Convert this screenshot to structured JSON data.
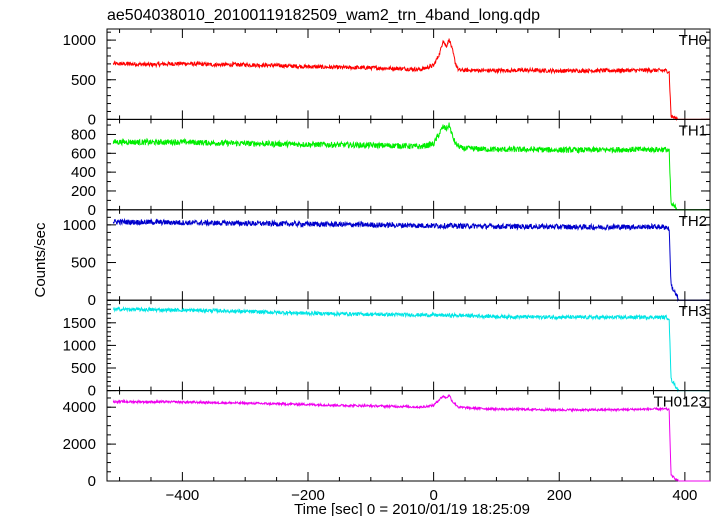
{
  "chart_data": {
    "type": "line",
    "title": "ae504038010_20100119182509_wam2_trn_4band_long.qdp",
    "xlabel": "Time [sec] 0 = 2010/01/19 18:25:09",
    "ylabel": "Counts/sec",
    "xlim": [
      -520,
      440
    ],
    "xticks": [
      -400,
      -200,
      0,
      200,
      400
    ],
    "xtick_labels": [
      "−400",
      "−200",
      "0",
      "200",
      "400"
    ],
    "panels": [
      {
        "name": "TH0",
        "color": "#ff0000",
        "ylim": [
          0,
          1140
        ],
        "yticks": [
          0,
          500,
          1000
        ],
        "yticks_labeled": true,
        "minor_step": 100,
        "x": [
          -510,
          -480,
          -450,
          -420,
          -400,
          -350,
          -300,
          -250,
          -200,
          -150,
          -100,
          -50,
          -20,
          0,
          10,
          15,
          20,
          25,
          30,
          35,
          40,
          60,
          100,
          150,
          200,
          250,
          300,
          350,
          370,
          375,
          378,
          390,
          440
        ],
        "y": [
          700,
          700,
          690,
          700,
          705,
          690,
          690,
          680,
          665,
          655,
          650,
          640,
          630,
          680,
          840,
          1000,
          920,
          1010,
          870,
          700,
          620,
          620,
          615,
          620,
          612,
          615,
          618,
          620,
          615,
          600,
          40,
          0,
          0
        ],
        "noise": 25
      },
      {
        "name": "TH1",
        "color": "#00ee00",
        "ylim": [
          0,
          960
        ],
        "yticks": [
          0,
          200,
          400,
          600,
          800
        ],
        "yticks_labeled": true,
        "minor_step": 100,
        "x": [
          -510,
          -480,
          -450,
          -420,
          -400,
          -350,
          -300,
          -250,
          -200,
          -150,
          -100,
          -50,
          -20,
          0,
          10,
          15,
          20,
          25,
          30,
          35,
          45,
          60,
          100,
          150,
          200,
          250,
          300,
          350,
          370,
          375,
          378,
          390,
          440
        ],
        "y": [
          720,
          720,
          715,
          720,
          720,
          710,
          705,
          700,
          695,
          690,
          685,
          680,
          670,
          700,
          820,
          880,
          860,
          900,
          780,
          700,
          650,
          650,
          640,
          640,
          635,
          635,
          640,
          640,
          640,
          620,
          60,
          0,
          0
        ],
        "noise": 30
      },
      {
        "name": "TH2",
        "color": "#0000cc",
        "ylim": [
          0,
          1200
        ],
        "yticks": [
          0,
          500,
          1000
        ],
        "yticks_labeled": true,
        "minor_step": 100,
        "x": [
          -510,
          -450,
          -400,
          -350,
          -300,
          -250,
          -200,
          -150,
          -100,
          -50,
          0,
          50,
          100,
          150,
          200,
          250,
          300,
          350,
          370,
          375,
          378,
          390,
          440
        ],
        "y": [
          1040,
          1035,
          1030,
          1025,
          1020,
          1015,
          1010,
          1005,
          1000,
          995,
          990,
          985,
          980,
          978,
          975,
          970,
          972,
          975,
          970,
          950,
          200,
          0,
          0
        ],
        "noise": 35
      },
      {
        "name": "TH3",
        "color": "#00e5e5",
        "ylim": [
          0,
          2000
        ],
        "yticks": [
          0,
          500,
          1000,
          1500
        ],
        "yticks_labeled": true,
        "minor_step": 100,
        "x": [
          -510,
          -450,
          -400,
          -350,
          -300,
          -250,
          -200,
          -150,
          -100,
          -50,
          0,
          50,
          100,
          150,
          200,
          250,
          300,
          350,
          370,
          375,
          378,
          390,
          440
        ],
        "y": [
          1800,
          1790,
          1780,
          1770,
          1750,
          1730,
          1710,
          1700,
          1690,
          1680,
          1670,
          1660,
          1640,
          1630,
          1625,
          1620,
          1620,
          1625,
          1620,
          1600,
          250,
          0,
          0
        ],
        "noise": 40
      },
      {
        "name": "TH0123",
        "color": "#ee00ee",
        "ylim": [
          0,
          4900
        ],
        "yticks": [
          0,
          2000,
          4000
        ],
        "yticks_labeled": true,
        "minor_step": 500,
        "x": [
          -510,
          -450,
          -400,
          -350,
          -300,
          -250,
          -200,
          -150,
          -100,
          -50,
          -20,
          0,
          10,
          15,
          20,
          25,
          30,
          40,
          60,
          100,
          150,
          200,
          250,
          300,
          350,
          370,
          375,
          378,
          390,
          440
        ],
        "y": [
          4300,
          4290,
          4280,
          4250,
          4220,
          4180,
          4150,
          4100,
          4070,
          4040,
          4000,
          4100,
          4450,
          4600,
          4500,
          4650,
          4300,
          4000,
          3950,
          3900,
          3880,
          3860,
          3850,
          3870,
          3900,
          3900,
          3850,
          300,
          0,
          0
        ],
        "noise": 60
      }
    ]
  }
}
